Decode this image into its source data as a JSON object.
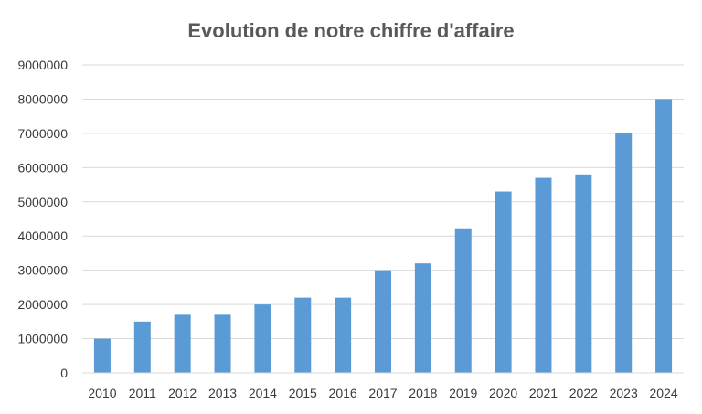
{
  "chart_data": {
    "type": "bar",
    "title": "Evolution de notre chiffre d'affaire",
    "xlabel": "",
    "ylabel": "",
    "categories": [
      "2010",
      "2011",
      "2012",
      "2013",
      "2014",
      "2015",
      "2016",
      "2017",
      "2018",
      "2019",
      "2020",
      "2021",
      "2022",
      "2023",
      "2024"
    ],
    "values": [
      1000000,
      1500000,
      1700000,
      1700000,
      2000000,
      2200000,
      2200000,
      3000000,
      3200000,
      4200000,
      5300000,
      5700000,
      5800000,
      7000000,
      8000000
    ],
    "ylim": [
      0,
      9000000
    ],
    "yticks": [
      "0",
      "1000000",
      "2000000",
      "3000000",
      "4000000",
      "5000000",
      "6000000",
      "7000000",
      "8000000",
      "9000000"
    ],
    "grid": true,
    "legend": "none",
    "bar_color": "#5b9bd5"
  }
}
